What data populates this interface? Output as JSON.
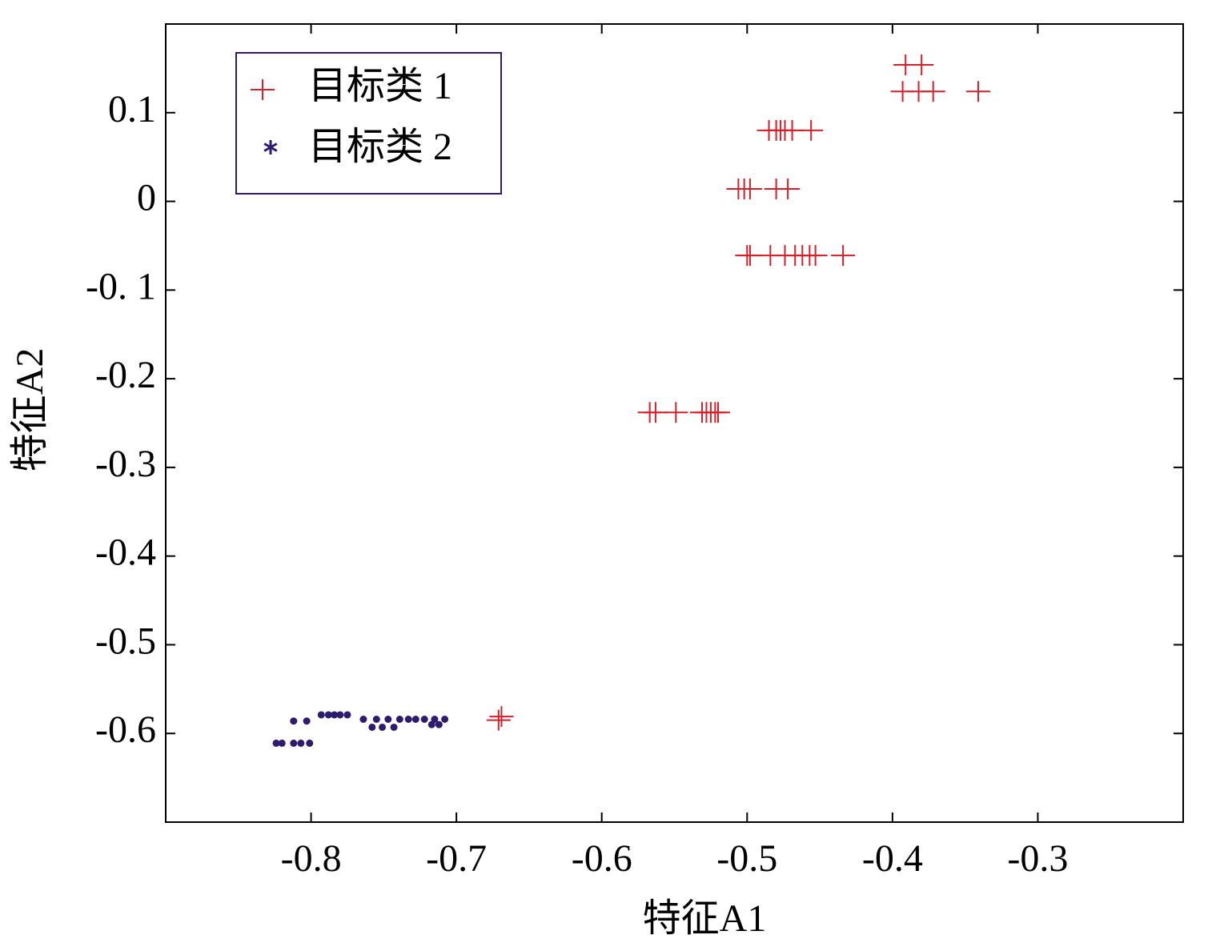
{
  "chart_data": {
    "type": "scatter",
    "xlabel": "特征A1",
    "ylabel": "特征A2",
    "xlim": [
      -0.9,
      -0.2
    ],
    "ylim": [
      -0.7,
      0.2
    ],
    "xticks": [
      -0.8,
      -0.7,
      -0.6,
      -0.5,
      -0.4,
      -0.3
    ],
    "yticks": [
      0.1,
      0,
      {
        "value": -0.1,
        "label": "-0. 1"
      },
      -0.2,
      -0.3,
      -0.4,
      -0.5,
      -0.6
    ],
    "grid": false,
    "legend": "upper left",
    "series": [
      {
        "name": "目标类 1",
        "color": "#d4202a",
        "marker": "+",
        "x": [
          -0.391,
          -0.38,
          -0.393,
          -0.382,
          -0.372,
          -0.341,
          -0.485,
          -0.48,
          -0.477,
          -0.474,
          -0.469,
          -0.456,
          -0.506,
          -0.502,
          -0.498,
          -0.48,
          -0.472,
          -0.5,
          -0.498,
          -0.484,
          -0.474,
          -0.467,
          -0.462,
          -0.457,
          -0.453,
          -0.434,
          -0.567,
          -0.563,
          -0.549,
          -0.531,
          -0.528,
          -0.525,
          -0.522,
          -0.52,
          -0.671,
          -0.669
        ],
        "y": [
          0.154,
          0.154,
          0.124,
          0.124,
          0.124,
          0.124,
          0.08,
          0.08,
          0.08,
          0.08,
          0.08,
          0.08,
          0.014,
          0.014,
          0.014,
          0.014,
          0.014,
          -0.061,
          -0.061,
          -0.061,
          -0.061,
          -0.061,
          -0.061,
          -0.061,
          -0.061,
          -0.061,
          -0.238,
          -0.238,
          -0.238,
          -0.238,
          -0.238,
          -0.238,
          -0.238,
          -0.238,
          -0.585,
          -0.581
        ]
      },
      {
        "name": "目标类 2",
        "color": "#2e1a6e",
        "marker": "*",
        "x": [
          -0.824,
          -0.82,
          -0.812,
          -0.807,
          -0.801,
          -0.812,
          -0.803,
          -0.793,
          -0.788,
          -0.784,
          -0.78,
          -0.775,
          -0.764,
          -0.755,
          -0.747,
          -0.739,
          -0.733,
          -0.728,
          -0.722,
          -0.715,
          -0.708,
          -0.758,
          -0.751,
          -0.743,
          -0.717,
          -0.712
        ],
        "y": [
          -0.611,
          -0.611,
          -0.611,
          -0.611,
          -0.611,
          -0.586,
          -0.586,
          -0.579,
          -0.579,
          -0.579,
          -0.579,
          -0.579,
          -0.584,
          -0.584,
          -0.584,
          -0.584,
          -0.584,
          -0.584,
          -0.584,
          -0.584,
          -0.584,
          -0.593,
          -0.593,
          -0.593,
          -0.59,
          -0.59
        ]
      }
    ]
  }
}
